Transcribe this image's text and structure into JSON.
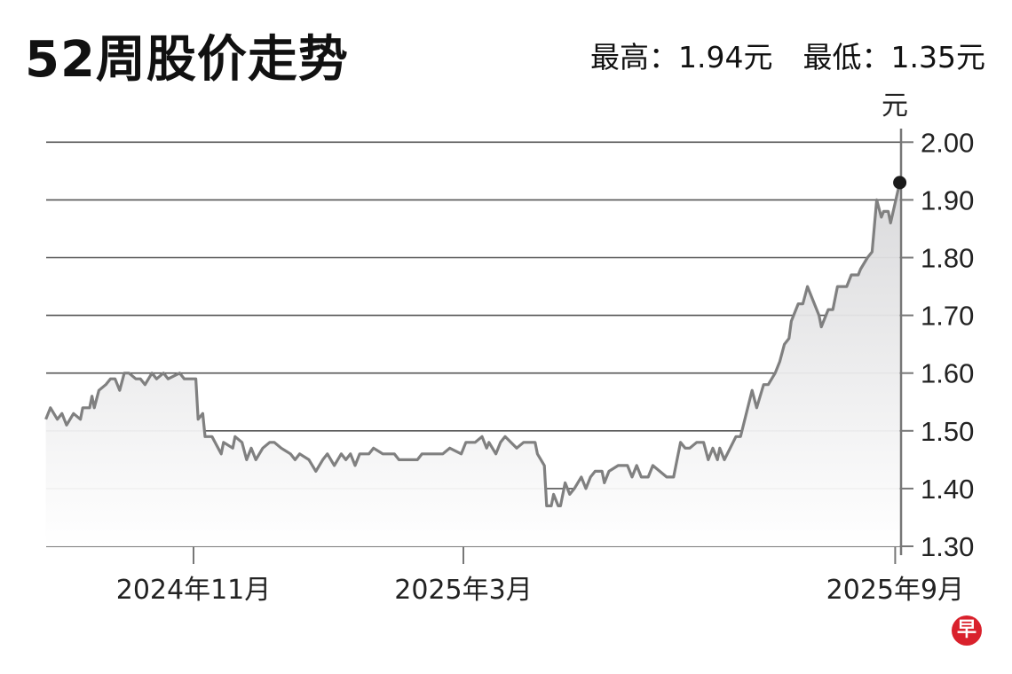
{
  "header": {
    "title": "52周股价走势",
    "high_label": "最高：1.94元",
    "low_label": "最低：1.35元"
  },
  "logo_text": "早",
  "chart_data": {
    "type": "area",
    "title": "52周股价走势",
    "ylabel": "元",
    "xlabel": "",
    "ylim": [
      1.3,
      2.0
    ],
    "yticks": [
      "1.30",
      "1.40",
      "1.50",
      "1.60",
      "1.70",
      "1.80",
      "1.90",
      "2.00"
    ],
    "xlim": [
      "2024-08-29",
      "2025-09-03"
    ],
    "xticks": [
      {
        "date": "2024-11-01",
        "label": "2024年11月"
      },
      {
        "date": "2025-03-01",
        "label": "2025年3月"
      },
      {
        "date": "2025-09-01",
        "label": "2025年9月"
      }
    ],
    "grid": true,
    "line_color": "#808080",
    "fill_color": "#dcdcde",
    "marker_color": "#1a1a1a",
    "high": 1.94,
    "low": 1.35,
    "points": [
      [
        "2024-08-29",
        1.52
      ],
      [
        "2024-08-31",
        1.54
      ],
      [
        "2024-09-03",
        1.52
      ],
      [
        "2024-09-05",
        1.53
      ],
      [
        "2024-09-07",
        1.51
      ],
      [
        "2024-09-10",
        1.53
      ],
      [
        "2024-09-13",
        1.52
      ],
      [
        "2024-09-14",
        1.54
      ],
      [
        "2024-09-17",
        1.54
      ],
      [
        "2024-09-18",
        1.56
      ],
      [
        "2024-09-19",
        1.54
      ],
      [
        "2024-09-21",
        1.57
      ],
      [
        "2024-09-24",
        1.58
      ],
      [
        "2024-09-26",
        1.59
      ],
      [
        "2024-09-28",
        1.59
      ],
      [
        "2024-09-30",
        1.57
      ],
      [
        "2024-10-02",
        1.6
      ],
      [
        "2024-10-04",
        1.6
      ],
      [
        "2024-10-07",
        1.59
      ],
      [
        "2024-10-09",
        1.59
      ],
      [
        "2024-10-11",
        1.58
      ],
      [
        "2024-10-14",
        1.6
      ],
      [
        "2024-10-16",
        1.59
      ],
      [
        "2024-10-19",
        1.6
      ],
      [
        "2024-10-21",
        1.59
      ],
      [
        "2024-10-26",
        1.6
      ],
      [
        "2024-10-28",
        1.59
      ],
      [
        "2024-10-30",
        1.59
      ],
      [
        "2024-11-02",
        1.59
      ],
      [
        "2024-11-03",
        1.52
      ],
      [
        "2024-11-05",
        1.53
      ],
      [
        "2024-11-06",
        1.49
      ],
      [
        "2024-11-09",
        1.49
      ],
      [
        "2024-11-13",
        1.46
      ],
      [
        "2024-11-14",
        1.48
      ],
      [
        "2024-11-18",
        1.47
      ],
      [
        "2024-11-19",
        1.49
      ],
      [
        "2024-11-22",
        1.48
      ],
      [
        "2024-11-24",
        1.45
      ],
      [
        "2024-11-26",
        1.47
      ],
      [
        "2024-11-28",
        1.45
      ],
      [
        "2024-12-01",
        1.47
      ],
      [
        "2024-12-04",
        1.48
      ],
      [
        "2024-12-06",
        1.48
      ],
      [
        "2024-12-09",
        1.47
      ],
      [
        "2024-12-13",
        1.46
      ],
      [
        "2024-12-15",
        1.45
      ],
      [
        "2024-12-17",
        1.46
      ],
      [
        "2024-12-21",
        1.45
      ],
      [
        "2024-12-24",
        1.43
      ],
      [
        "2024-12-27",
        1.45
      ],
      [
        "2024-12-29",
        1.46
      ],
      [
        "2025-01-01",
        1.44
      ],
      [
        "2025-01-04",
        1.46
      ],
      [
        "2025-01-06",
        1.45
      ],
      [
        "2025-01-08",
        1.46
      ],
      [
        "2025-01-10",
        1.44
      ],
      [
        "2025-01-12",
        1.46
      ],
      [
        "2025-01-16",
        1.46
      ],
      [
        "2025-01-18",
        1.47
      ],
      [
        "2025-01-22",
        1.46
      ],
      [
        "2025-01-27",
        1.46
      ],
      [
        "2025-01-29",
        1.45
      ],
      [
        "2025-02-04",
        1.45
      ],
      [
        "2025-02-06",
        1.45
      ],
      [
        "2025-02-08",
        1.46
      ],
      [
        "2025-02-14",
        1.46
      ],
      [
        "2025-02-17",
        1.46
      ],
      [
        "2025-02-20",
        1.47
      ],
      [
        "2025-02-25",
        1.46
      ],
      [
        "2025-02-27",
        1.48
      ],
      [
        "2025-03-03",
        1.48
      ],
      [
        "2025-03-06",
        1.49
      ],
      [
        "2025-03-08",
        1.47
      ],
      [
        "2025-03-09",
        1.48
      ],
      [
        "2025-03-12",
        1.46
      ],
      [
        "2025-03-14",
        1.48
      ],
      [
        "2025-03-16",
        1.49
      ],
      [
        "2025-03-21",
        1.47
      ],
      [
        "2025-03-24",
        1.48
      ],
      [
        "2025-03-29",
        1.48
      ],
      [
        "2025-03-30",
        1.46
      ],
      [
        "2025-04-02",
        1.44
      ],
      [
        "2025-04-03",
        1.37
      ],
      [
        "2025-04-05",
        1.37
      ],
      [
        "2025-04-06",
        1.39
      ],
      [
        "2025-04-08",
        1.37
      ],
      [
        "2025-04-09",
        1.37
      ],
      [
        "2025-04-11",
        1.41
      ],
      [
        "2025-04-13",
        1.39
      ],
      [
        "2025-04-15",
        1.4
      ],
      [
        "2025-04-18",
        1.42
      ],
      [
        "2025-04-20",
        1.4
      ],
      [
        "2025-04-22",
        1.42
      ],
      [
        "2025-04-24",
        1.43
      ],
      [
        "2025-04-27",
        1.43
      ],
      [
        "2025-04-28",
        1.41
      ],
      [
        "2025-04-30",
        1.43
      ],
      [
        "2025-05-04",
        1.44
      ],
      [
        "2025-05-08",
        1.44
      ],
      [
        "2025-05-10",
        1.42
      ],
      [
        "2025-05-12",
        1.44
      ],
      [
        "2025-05-14",
        1.42
      ],
      [
        "2025-05-17",
        1.42
      ],
      [
        "2025-05-19",
        1.44
      ],
      [
        "2025-05-25",
        1.42
      ],
      [
        "2025-05-28",
        1.42
      ],
      [
        "2025-05-31",
        1.48
      ],
      [
        "2025-06-02",
        1.47
      ],
      [
        "2025-06-04",
        1.47
      ],
      [
        "2025-06-07",
        1.48
      ],
      [
        "2025-06-10",
        1.48
      ],
      [
        "2025-06-12",
        1.45
      ],
      [
        "2025-06-14",
        1.47
      ],
      [
        "2025-06-16",
        1.45
      ],
      [
        "2025-06-17",
        1.47
      ],
      [
        "2025-06-19",
        1.45
      ],
      [
        "2025-06-24",
        1.49
      ],
      [
        "2025-06-26",
        1.49
      ],
      [
        "2025-07-01",
        1.57
      ],
      [
        "2025-07-03",
        1.54
      ],
      [
        "2025-07-06",
        1.58
      ],
      [
        "2025-07-08",
        1.58
      ],
      [
        "2025-07-11",
        1.6
      ],
      [
        "2025-07-13",
        1.62
      ],
      [
        "2025-07-15",
        1.65
      ],
      [
        "2025-07-17",
        1.66
      ],
      [
        "2025-07-18",
        1.69
      ],
      [
        "2025-07-21",
        1.72
      ],
      [
        "2025-07-23",
        1.72
      ],
      [
        "2025-07-25",
        1.75
      ],
      [
        "2025-07-28",
        1.72
      ],
      [
        "2025-07-30",
        1.7
      ],
      [
        "2025-07-31",
        1.68
      ],
      [
        "2025-08-03",
        1.71
      ],
      [
        "2025-08-05",
        1.71
      ],
      [
        "2025-08-07",
        1.75
      ],
      [
        "2025-08-11",
        1.75
      ],
      [
        "2025-08-13",
        1.77
      ],
      [
        "2025-08-16",
        1.77
      ],
      [
        "2025-08-17",
        1.78
      ],
      [
        "2025-08-20",
        1.8
      ],
      [
        "2025-08-22",
        1.81
      ],
      [
        "2025-08-24",
        1.9
      ],
      [
        "2025-08-26",
        1.87
      ],
      [
        "2025-08-27",
        1.88
      ],
      [
        "2025-08-29",
        1.88
      ],
      [
        "2025-08-30",
        1.86
      ],
      [
        "2025-09-03",
        1.93
      ]
    ]
  }
}
